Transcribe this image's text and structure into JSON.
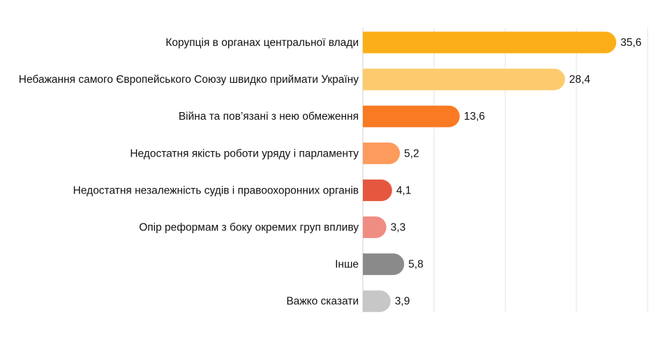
{
  "chart_data": {
    "type": "bar",
    "orientation": "horizontal",
    "categories": [
      "Корупція в органах центральної влади",
      "Небажання самого Європейського Союзу швидко приймати Україну",
      "Війна та пов’язані з нею обмеження",
      "Недостатня якість роботи уряду і парламенту",
      "Недостатня незалежність судів і правоохоронних органів",
      "Опір реформам з боку окремих груп впливу",
      "Інше",
      "Важко сказати"
    ],
    "values": [
      35.6,
      28.4,
      13.6,
      5.2,
      4.1,
      3.3,
      5.8,
      3.9
    ],
    "value_labels": [
      "35,6",
      "28,4",
      "13,6",
      "5,2",
      "4,1",
      "3,3",
      "5,8",
      "3,9"
    ],
    "colors": [
      "#FBAE18",
      "#FDCB6E",
      "#F97A22",
      "#FD9B5C",
      "#E5573E",
      "#F08D83",
      "#8A8A8A",
      "#C7C7C7"
    ],
    "xlim": [
      0,
      40
    ],
    "grid": true,
    "legend": "none",
    "title": "",
    "xlabel": "",
    "ylabel": ""
  }
}
